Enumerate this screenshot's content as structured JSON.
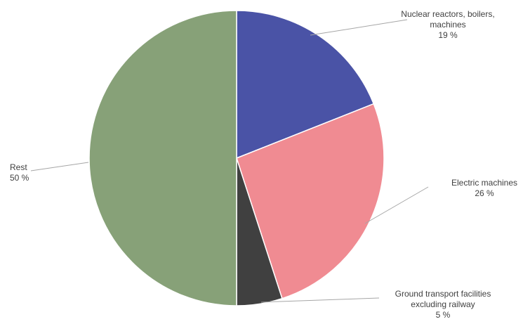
{
  "chart_data": {
    "type": "pie",
    "slices": [
      {
        "name": "Nuclear reactors, boilers, machines",
        "label_lines": [
          "Nuclear reactors, boilers,",
          "machines"
        ],
        "value": 19,
        "value_label": "19 %",
        "color": "#4a53a6"
      },
      {
        "name": "Electric machines",
        "label_lines": [
          "Electric machines"
        ],
        "value": 26,
        "value_label": "26 %",
        "color": "#f08b92"
      },
      {
        "name": "Ground transport facilities excluding railway",
        "label_lines": [
          "Ground transport facilities",
          "excluding railway"
        ],
        "value": 5,
        "value_label": "5 %",
        "color": "#404040"
      },
      {
        "name": "Rest",
        "label_lines": [
          "Rest"
        ],
        "value": 50,
        "value_label": "50 %",
        "color": "#87a178"
      }
    ],
    "start": "12 o'clock",
    "direction": "clockwise",
    "legend": "none"
  }
}
